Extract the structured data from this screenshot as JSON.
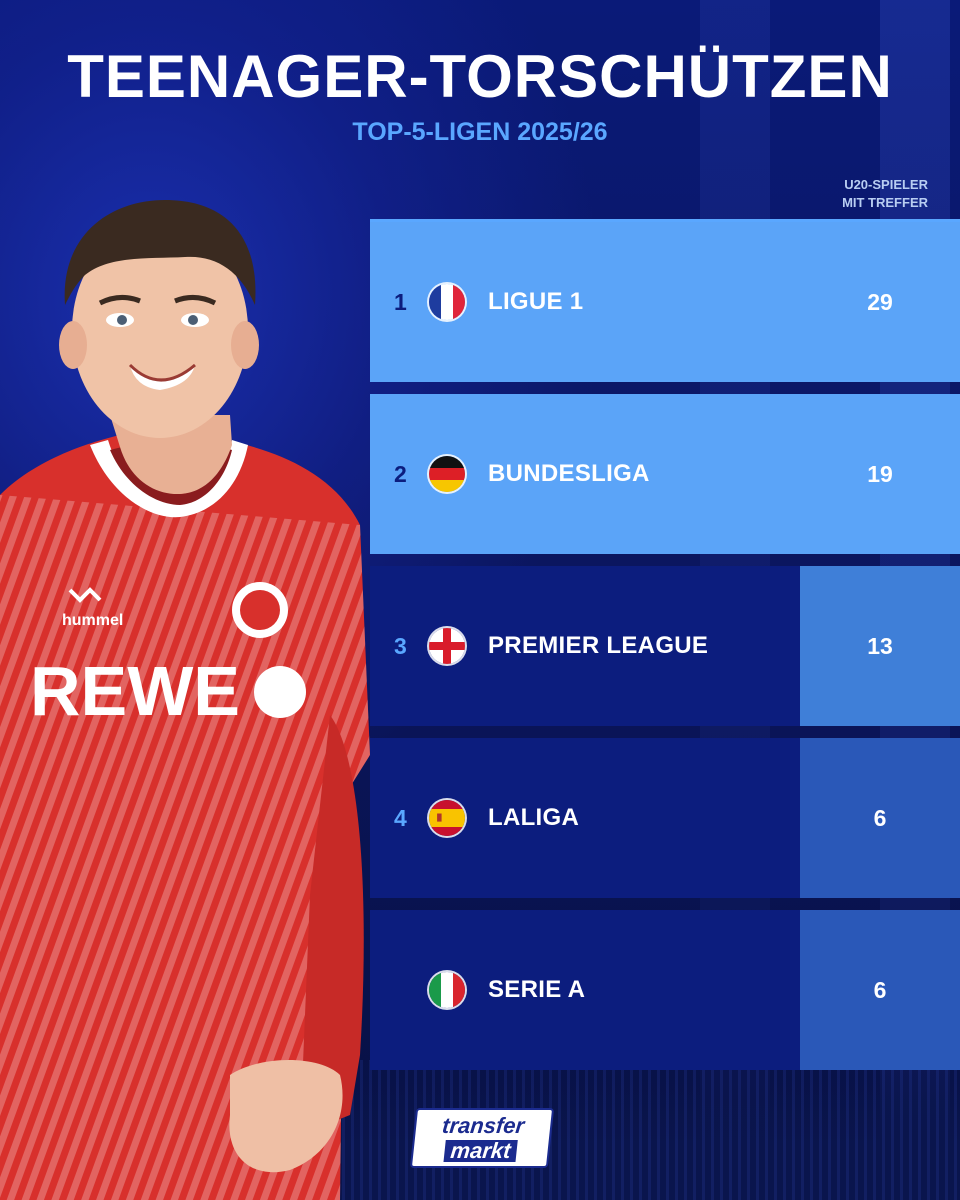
{
  "header": {
    "title": "TEENAGER-TORSCHÜTZEN",
    "subtitle": "TOP-5-LIGEN 2025/26"
  },
  "table": {
    "column_header_line1": "U20-SPIELER",
    "column_header_line2": "MIT TREFFER",
    "rows": [
      {
        "rank": "1",
        "league": "LIGUE 1",
        "flag_icon": "france-flag-icon",
        "value": "29",
        "value_bg": "#5ba4f8"
      },
      {
        "rank": "2",
        "league": "BUNDESLIGA",
        "flag_icon": "germany-flag-icon",
        "value": "19",
        "value_bg": "#5ba4f8"
      },
      {
        "rank": "3",
        "league": "PREMIER LEAGUE",
        "flag_icon": "england-flag-icon",
        "value": "13",
        "value_bg": "#3f7fd8"
      },
      {
        "rank": "4",
        "league": "LALIGA",
        "flag_icon": "spain-flag-icon",
        "value": "6",
        "value_bg": "#2a58b8"
      },
      {
        "rank": "",
        "league": "SERIE A",
        "flag_icon": "italy-flag-icon",
        "value": "6",
        "value_bg": "#2a58b8"
      }
    ]
  },
  "player": {
    "kit_sponsor": "REWE",
    "kit_brand": "hummel"
  },
  "logo": {
    "line1": "transfer",
    "line2": "markt"
  },
  "colors": {
    "accent": "#5aa7ff",
    "row_dark": "#0c1d7e",
    "highlight": "#5ba4f8",
    "jersey_red": "#d8302c"
  }
}
